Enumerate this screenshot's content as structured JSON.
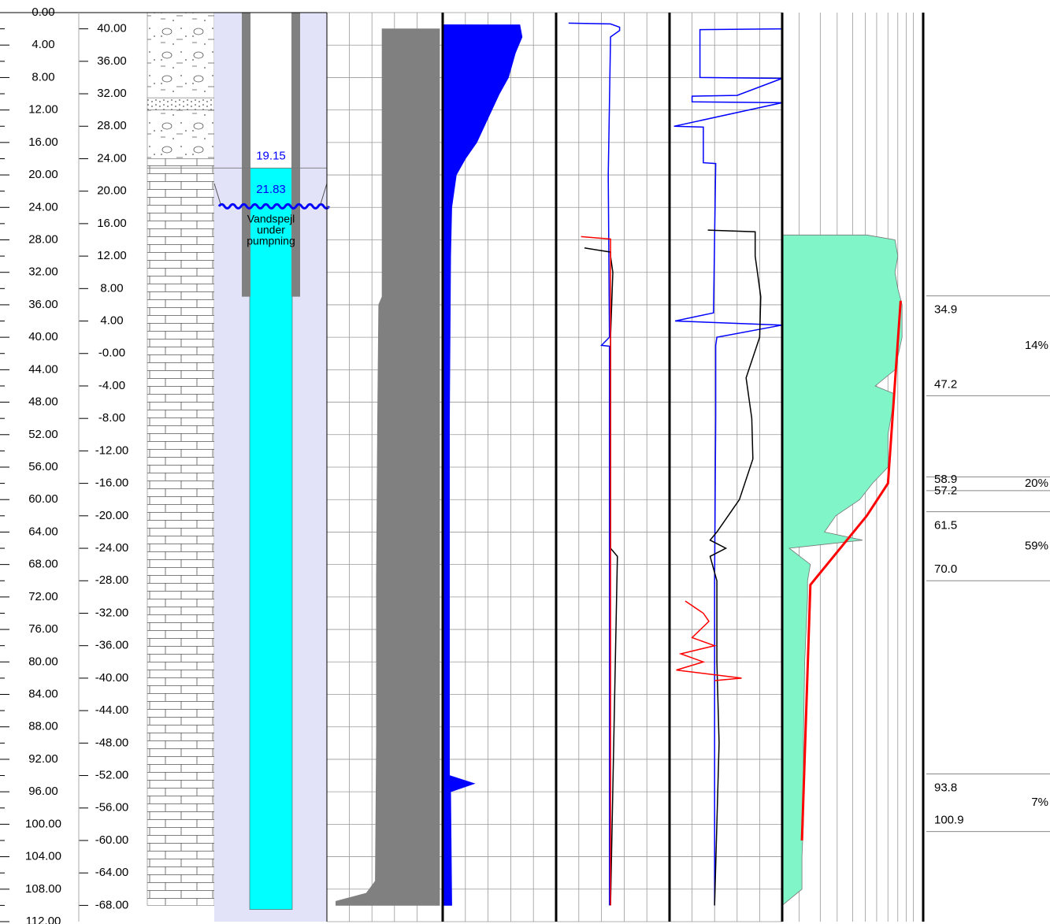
{
  "depth_axis": {
    "lim": [
      0,
      112
    ],
    "ticks": [
      {
        "value": 0,
        "label": "0.00"
      },
      {
        "value": 4,
        "label": "4.00"
      },
      {
        "value": 8,
        "label": "8.00"
      },
      {
        "value": 12,
        "label": "12.00"
      },
      {
        "value": 16,
        "label": "16.00"
      },
      {
        "value": 20,
        "label": "20.00"
      },
      {
        "value": 24,
        "label": "24.00"
      },
      {
        "value": 28,
        "label": "28.00"
      },
      {
        "value": 32,
        "label": "32.00"
      },
      {
        "value": 36,
        "label": "36.00"
      },
      {
        "value": 40,
        "label": "40.00"
      },
      {
        "value": 44,
        "label": "44.00"
      },
      {
        "value": 48,
        "label": "48.00"
      },
      {
        "value": 52,
        "label": "52.00"
      },
      {
        "value": 56,
        "label": "56.00"
      },
      {
        "value": 60,
        "label": "60.00"
      },
      {
        "value": 64,
        "label": "64.00"
      },
      {
        "value": 68,
        "label": "68.00"
      },
      {
        "value": 72,
        "label": "72.00"
      },
      {
        "value": 76,
        "label": "76.00"
      },
      {
        "value": 80,
        "label": "80.00"
      },
      {
        "value": 84,
        "label": "84.00"
      },
      {
        "value": 88,
        "label": "88.00"
      },
      {
        "value": 92,
        "label": "92.00"
      },
      {
        "value": 96,
        "label": "96.00"
      },
      {
        "value": 100,
        "label": "100.00"
      },
      {
        "value": 104,
        "label": "104.00"
      },
      {
        "value": 108,
        "label": "108.00"
      },
      {
        "value": 112,
        "label": "112.00"
      }
    ]
  },
  "elevation_axis": {
    "lim": [
      42,
      -70
    ],
    "ticks": [
      {
        "value": 40,
        "label": "40.00"
      },
      {
        "value": 36,
        "label": "36.00"
      },
      {
        "value": 32,
        "label": "32.00"
      },
      {
        "value": 28,
        "label": "28.00"
      },
      {
        "value": 24,
        "label": "24.00"
      },
      {
        "value": 20,
        "label": "20.00"
      },
      {
        "value": 16,
        "label": "16.00"
      },
      {
        "value": 12,
        "label": "12.00"
      },
      {
        "value": 8,
        "label": "8.00"
      },
      {
        "value": 4,
        "label": "4.00"
      },
      {
        "value": 0,
        "label": "-0.00"
      },
      {
        "value": -4,
        "label": "-4.00"
      },
      {
        "value": -8,
        "label": "-8.00"
      },
      {
        "value": -12,
        "label": "-12.00"
      },
      {
        "value": -16,
        "label": "-16.00"
      },
      {
        "value": -20,
        "label": "-20.00"
      },
      {
        "value": -24,
        "label": "-24.00"
      },
      {
        "value": -28,
        "label": "-28.00"
      },
      {
        "value": -32,
        "label": "-32.00"
      },
      {
        "value": -36,
        "label": "-36.00"
      },
      {
        "value": -40,
        "label": "-40.00"
      },
      {
        "value": -44,
        "label": "-44.00"
      },
      {
        "value": -48,
        "label": "-48.00"
      },
      {
        "value": -52,
        "label": "-52.00"
      },
      {
        "value": -56,
        "label": "-56.00"
      },
      {
        "value": -60,
        "label": "-60.00"
      },
      {
        "value": -64,
        "label": "-64.00"
      },
      {
        "value": -68,
        "label": "-68.00"
      }
    ]
  },
  "lithology": [
    {
      "top": 0,
      "bottom": 10.5,
      "pattern": "gravel"
    },
    {
      "top": 10.5,
      "bottom": 12,
      "pattern": "sand"
    },
    {
      "top": 12,
      "bottom": 18,
      "pattern": "gravel"
    },
    {
      "top": 18,
      "bottom": 110,
      "pattern": "limestone"
    }
  ],
  "well": {
    "casing_bottom": 35,
    "bottom": 110.5,
    "water_level": 19.15,
    "pumping_level": 21.83,
    "pumping_label": [
      "Vandspejl",
      "under",
      "pumpning"
    ]
  },
  "tracks": [
    {
      "xlim": [
        0,
        100
      ],
      "curves": [
        {
          "color": "#808080",
          "style": "fill-right",
          "depth": [
            2,
            35,
            36,
            50,
            70,
            90,
            107,
            108.5,
            109.5,
            110
          ],
          "values": [
            49,
            49,
            46,
            45,
            44,
            44,
            43,
            35,
            8,
            8
          ]
        }
      ]
    },
    {
      "xlim": [
        0,
        100
      ],
      "curves": [
        {
          "color": "#0000ff",
          "style": "fill-left",
          "depth": [
            1.5,
            3,
            5,
            8,
            10,
            13,
            16,
            18,
            20,
            24,
            30,
            50,
            80,
            94,
            95,
            96,
            110
          ],
          "values": [
            68,
            70,
            64,
            58,
            50,
            40,
            30,
            20,
            12,
            8,
            7,
            6,
            6,
            6,
            28,
            7,
            8
          ]
        }
      ]
    },
    {
      "xlim": [
        0,
        100
      ],
      "curves": [
        {
          "color": "#0000ff",
          "style": "line",
          "depth": [
            1.3,
            1.4,
            1.8,
            2.2,
            3,
            20,
            40,
            41,
            41.1,
            60,
            110
          ],
          "values": [
            11,
            48,
            56,
            56,
            48,
            46,
            47,
            40,
            47,
            47,
            47
          ]
        },
        {
          "color": "#000000",
          "style": "line",
          "depth": [
            29,
            29.5,
            30,
            32,
            40,
            66,
            67,
            110
          ],
          "values": [
            25,
            48,
            48,
            50,
            48,
            48,
            54,
            48
          ]
        },
        {
          "color": "#ff0000",
          "style": "line",
          "depth": [
            27.6,
            27.9,
            30,
            110
          ],
          "values": [
            22,
            48,
            48,
            48
          ]
        }
      ]
    },
    {
      "xlim": [
        0,
        100
      ],
      "curves": [
        {
          "color": "#0000ff",
          "style": "line",
          "depth": [
            2,
            2.1,
            8,
            8.1,
            10.2,
            10.3,
            11,
            11.1,
            14,
            14.1,
            18.5,
            18.6,
            37,
            38,
            38.5,
            40,
            41,
            50,
            70,
            110
          ],
          "values": [
            100,
            27,
            27,
            100,
            60,
            20,
            20,
            100,
            4,
            30,
            30,
            41,
            39,
            5,
            100,
            42,
            41,
            41,
            40,
            40
          ]
        },
        {
          "color": "#000000",
          "style": "line",
          "depth": [
            26.8,
            27,
            30,
            35,
            40,
            45,
            50,
            55,
            60,
            64,
            65,
            66,
            67,
            70,
            80,
            90,
            110
          ],
          "values": [
            34,
            76,
            76,
            81,
            80,
            68,
            73,
            74,
            62,
            42,
            36,
            50,
            36,
            42,
            42,
            44,
            40
          ]
        },
        {
          "color": "#ff0000",
          "style": "line",
          "depth": [
            72.5,
            74,
            75,
            77,
            78,
            79,
            80,
            81,
            82,
            82.3
          ],
          "values": [
            14,
            30,
            35,
            20,
            40,
            10,
            30,
            6,
            64,
            40
          ]
        }
      ]
    },
    {
      "xlim": [
        0,
        100
      ],
      "curves": [
        {
          "color": "#7ff5c8",
          "style": "fill-left",
          "depth": [
            27.4,
            28,
            30,
            32,
            34,
            36,
            40,
            44,
            46,
            47,
            52,
            56,
            58,
            60,
            62,
            64,
            65,
            66,
            68,
            70,
            72,
            80,
            90,
            100,
            104,
            108,
            110
          ],
          "values": [
            60,
            80,
            82,
            80,
            82,
            85,
            85,
            80,
            66,
            80,
            75,
            75,
            64,
            55,
            38,
            30,
            57,
            5,
            20,
            18,
            18,
            16,
            15,
            15,
            14,
            14,
            0
          ]
        },
        {
          "color": "#ff0000",
          "style": "line",
          "depth": [
            35.5,
            58,
            62,
            70.5,
            102
          ],
          "values": [
            84,
            75,
            60,
            20,
            14
          ]
        }
      ]
    }
  ],
  "flow_zones": [
    {
      "top": 34.9,
      "bottom": 47.2,
      "share": "14%"
    },
    {
      "top": 57.2,
      "bottom": 58.9,
      "share": "20%"
    },
    {
      "top": 61.5,
      "bottom": {
        "value": 70,
        "label": "70.0"
      },
      "share": "59%"
    },
    {
      "top": 93.8,
      "bottom": 100.9,
      "share": "7%"
    }
  ]
}
